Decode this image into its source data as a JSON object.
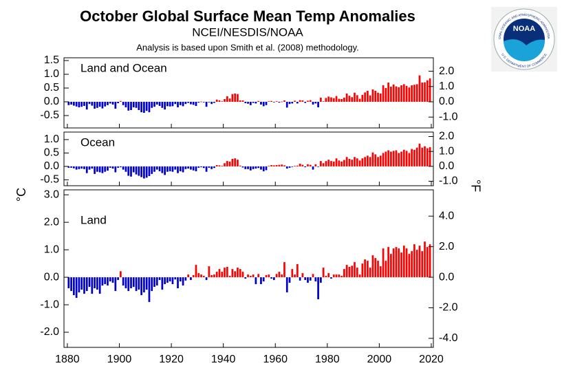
{
  "header": {
    "title": "October Global Surface Mean Temp Anomalies",
    "subtitle": "NCEI/NESDIS/NOAA",
    "note": "Analysis is based upon Smith et al. (2008) methodology."
  },
  "y_axis_label": "°C",
  "y2_axis_label": "°F",
  "logo": {
    "text": "NOAA",
    "ring_top": "NATIONAL OCEANIC AND ATMOSPHERIC ADMINISTRATION",
    "ring_bottom": "U.S. DEPARTMENT OF COMMERCE"
  },
  "chart_data": [
    {
      "type": "bar",
      "label": "Land and Ocean",
      "positive_color": "#ff0000",
      "negative_color": "#0000cc",
      "xlim": [
        1878.7,
        2020.8
      ],
      "x": [
        1880,
        1881,
        1882,
        1883,
        1884,
        1885,
        1886,
        1887,
        1888,
        1889,
        1890,
        1891,
        1892,
        1893,
        1894,
        1895,
        1896,
        1897,
        1898,
        1899,
        1900,
        1901,
        1902,
        1903,
        1904,
        1905,
        1906,
        1907,
        1908,
        1909,
        1910,
        1911,
        1912,
        1913,
        1914,
        1915,
        1916,
        1917,
        1918,
        1919,
        1920,
        1921,
        1922,
        1923,
        1924,
        1925,
        1926,
        1927,
        1928,
        1929,
        1930,
        1931,
        1932,
        1933,
        1934,
        1935,
        1936,
        1937,
        1938,
        1939,
        1940,
        1941,
        1942,
        1943,
        1944,
        1945,
        1946,
        1947,
        1948,
        1949,
        1950,
        1951,
        1952,
        1953,
        1954,
        1955,
        1956,
        1957,
        1958,
        1959,
        1960,
        1961,
        1962,
        1963,
        1964,
        1965,
        1966,
        1967,
        1968,
        1969,
        1970,
        1971,
        1972,
        1973,
        1974,
        1975,
        1976,
        1977,
        1978,
        1979,
        1980,
        1981,
        1982,
        1983,
        1984,
        1985,
        1986,
        1987,
        1988,
        1989,
        1990,
        1991,
        1992,
        1993,
        1994,
        1995,
        1996,
        1997,
        1998,
        1999,
        2000,
        2001,
        2002,
        2003,
        2004,
        2005,
        2006,
        2007,
        2008,
        2009,
        2010,
        2011,
        2012,
        2013,
        2014,
        2015,
        2016,
        2017,
        2018,
        2019
      ],
      "values": [
        -0.12,
        -0.1,
        -0.14,
        -0.17,
        -0.2,
        -0.18,
        -0.15,
        -0.28,
        -0.08,
        -0.14,
        -0.25,
        -0.22,
        -0.18,
        -0.24,
        -0.17,
        -0.12,
        -0.06,
        -0.1,
        -0.25,
        -0.05,
        0.03,
        -0.12,
        -0.2,
        -0.32,
        -0.3,
        -0.2,
        -0.22,
        -0.3,
        -0.38,
        -0.4,
        -0.33,
        -0.38,
        -0.22,
        -0.18,
        -0.1,
        -0.15,
        -0.22,
        -0.28,
        -0.16,
        -0.17,
        -0.16,
        -0.08,
        -0.2,
        -0.12,
        -0.16,
        -0.08,
        -0.04,
        -0.09,
        -0.11,
        -0.15,
        -0.03,
        0.01,
        -0.02,
        -0.18,
        -0.02,
        -0.08,
        -0.04,
        0.08,
        0.05,
        0.02,
        0.1,
        0.2,
        0.12,
        0.28,
        0.3,
        0.28,
        0.05,
        0.05,
        -0.05,
        -0.07,
        -0.12,
        -0.04,
        -0.06,
        0.03,
        -0.1,
        -0.16,
        -0.12,
        0.02,
        0.03,
        -0.02,
        0.02,
        -0.03,
        0.01,
        0.05,
        -0.21,
        -0.08,
        -0.06,
        0.04,
        -0.06,
        0.06,
        0.05,
        -0.04,
        0.04,
        0.06,
        -0.1,
        -0.06,
        -0.2,
        0.15,
        0.02,
        0.14,
        0.19,
        0.16,
        0.13,
        0.21,
        0.11,
        0.1,
        0.15,
        0.3,
        0.22,
        0.17,
        0.33,
        0.24,
        0.11,
        0.25,
        0.34,
        0.4,
        0.23,
        0.45,
        0.4,
        0.33,
        0.3,
        0.6,
        0.5,
        0.7,
        0.55,
        0.63,
        0.56,
        0.53,
        0.6,
        0.64,
        0.58,
        0.52,
        0.6,
        0.62,
        0.64,
        0.96,
        0.7,
        0.71,
        0.78,
        0.85
      ],
      "ylim": [
        -0.95,
        1.6
      ],
      "yticks": [
        {
          "value": -0.5,
          "label": "-0.5"
        },
        {
          "value": 0,
          "label": "0.0"
        },
        0.5,
        {
          "value": 1,
          "label": "1.0"
        },
        1.5
      ],
      "y2lim": [
        -1.71,
        2.88
      ],
      "y2ticks": [
        {
          "value": -1,
          "label": "-1.0"
        },
        {
          "value": 0,
          "label": "0.0"
        },
        {
          "value": 1,
          "label": "1.0"
        },
        {
          "value": 2,
          "label": "2.0"
        }
      ]
    },
    {
      "type": "bar",
      "label": "Ocean",
      "positive_color": "#ff0000",
      "negative_color": "#0000cc",
      "xlim": [
        1878.7,
        2020.8
      ],
      "x": [
        1880,
        1881,
        1882,
        1883,
        1884,
        1885,
        1886,
        1887,
        1888,
        1889,
        1890,
        1891,
        1892,
        1893,
        1894,
        1895,
        1896,
        1897,
        1898,
        1899,
        1900,
        1901,
        1902,
        1903,
        1904,
        1905,
        1906,
        1907,
        1908,
        1909,
        1910,
        1911,
        1912,
        1913,
        1914,
        1915,
        1916,
        1917,
        1918,
        1919,
        1920,
        1921,
        1922,
        1923,
        1924,
        1925,
        1926,
        1927,
        1928,
        1929,
        1930,
        1931,
        1932,
        1933,
        1934,
        1935,
        1936,
        1937,
        1938,
        1939,
        1940,
        1941,
        1942,
        1943,
        1944,
        1945,
        1946,
        1947,
        1948,
        1949,
        1950,
        1951,
        1952,
        1953,
        1954,
        1955,
        1956,
        1957,
        1958,
        1959,
        1960,
        1961,
        1962,
        1963,
        1964,
        1965,
        1966,
        1967,
        1968,
        1969,
        1970,
        1971,
        1972,
        1973,
        1974,
        1975,
        1976,
        1977,
        1978,
        1979,
        1980,
        1981,
        1982,
        1983,
        1984,
        1985,
        1986,
        1987,
        1988,
        1989,
        1990,
        1991,
        1992,
        1993,
        1994,
        1995,
        1996,
        1997,
        1998,
        1999,
        2000,
        2001,
        2002,
        2003,
        2004,
        2005,
        2006,
        2007,
        2008,
        2009,
        2010,
        2011,
        2012,
        2013,
        2014,
        2015,
        2016,
        2017,
        2018,
        2019
      ],
      "values": [
        -0.05,
        -0.05,
        -0.07,
        -0.12,
        -0.1,
        -0.08,
        -0.1,
        -0.25,
        -0.12,
        -0.08,
        -0.28,
        -0.2,
        -0.22,
        -0.25,
        -0.2,
        -0.16,
        -0.05,
        -0.08,
        -0.22,
        -0.05,
        -0.03,
        -0.12,
        -0.2,
        -0.35,
        -0.38,
        -0.22,
        -0.3,
        -0.35,
        -0.4,
        -0.45,
        -0.42,
        -0.36,
        -0.28,
        -0.2,
        -0.12,
        -0.18,
        -0.25,
        -0.32,
        -0.2,
        -0.18,
        -0.2,
        -0.12,
        -0.25,
        -0.18,
        -0.22,
        -0.1,
        -0.08,
        -0.12,
        -0.15,
        -0.18,
        -0.05,
        -0.03,
        -0.06,
        -0.2,
        -0.05,
        -0.1,
        -0.06,
        0.05,
        0.04,
        0.02,
        0.12,
        0.2,
        0.18,
        0.28,
        0.3,
        0.25,
        0.03,
        -0.04,
        -0.1,
        -0.1,
        -0.15,
        -0.1,
        -0.08,
        -0.06,
        -0.12,
        -0.18,
        -0.14,
        0.02,
        0.05,
        0.04,
        0.05,
        0.06,
        0.07,
        0.04,
        -0.08,
        -0.05,
        -0.02,
        0.02,
        0.03,
        0.1,
        0.06,
        -0.03,
        0.08,
        0.06,
        -0.12,
        0.08,
        -0.02,
        0.2,
        0.12,
        0.2,
        0.25,
        0.2,
        0.18,
        0.3,
        0.22,
        0.18,
        0.24,
        0.35,
        0.28,
        0.25,
        0.35,
        0.3,
        0.22,
        0.3,
        0.35,
        0.4,
        0.35,
        0.52,
        0.45,
        0.35,
        0.4,
        0.5,
        0.55,
        0.6,
        0.55,
        0.58,
        0.6,
        0.5,
        0.55,
        0.62,
        0.58,
        0.5,
        0.65,
        0.62,
        0.7,
        0.85,
        0.7,
        0.75,
        0.68,
        0.72
      ],
      "ylim": [
        -0.72,
        1.28
      ],
      "yticks": [
        {
          "value": -0.5,
          "label": "-0.5"
        },
        {
          "value": 0,
          "label": "0.0"
        },
        0.5,
        {
          "value": 1,
          "label": "1.0"
        }
      ],
      "y2lim": [
        -1.3,
        2.3
      ],
      "y2ticks": [
        {
          "value": -1,
          "label": "-1.0"
        },
        {
          "value": 0,
          "label": "0.0"
        },
        {
          "value": 1,
          "label": "1.0"
        },
        {
          "value": 2,
          "label": "2.0"
        }
      ]
    },
    {
      "type": "bar",
      "label": "Land",
      "positive_color": "#ff0000",
      "negative_color": "#0000cc",
      "xlim": [
        1878.7,
        2020.8
      ],
      "xticks": [
        1880,
        1900,
        1920,
        1940,
        1960,
        1980,
        2000,
        2020
      ],
      "x": [
        1880,
        1881,
        1882,
        1883,
        1884,
        1885,
        1886,
        1887,
        1888,
        1889,
        1890,
        1891,
        1892,
        1893,
        1894,
        1895,
        1896,
        1897,
        1898,
        1899,
        1900,
        1901,
        1902,
        1903,
        1904,
        1905,
        1906,
        1907,
        1908,
        1909,
        1910,
        1911,
        1912,
        1913,
        1914,
        1915,
        1916,
        1917,
        1918,
        1919,
        1920,
        1921,
        1922,
        1923,
        1924,
        1925,
        1926,
        1927,
        1928,
        1929,
        1930,
        1931,
        1932,
        1933,
        1934,
        1935,
        1936,
        1937,
        1938,
        1939,
        1940,
        1941,
        1942,
        1943,
        1944,
        1945,
        1946,
        1947,
        1948,
        1949,
        1950,
        1951,
        1952,
        1953,
        1954,
        1955,
        1956,
        1957,
        1958,
        1959,
        1960,
        1961,
        1962,
        1963,
        1964,
        1965,
        1966,
        1967,
        1968,
        1969,
        1970,
        1971,
        1972,
        1973,
        1974,
        1975,
        1976,
        1977,
        1978,
        1979,
        1980,
        1981,
        1982,
        1983,
        1984,
        1985,
        1986,
        1987,
        1988,
        1989,
        1990,
        1991,
        1992,
        1993,
        1994,
        1995,
        1996,
        1997,
        1998,
        1999,
        2000,
        2001,
        2002,
        2003,
        2004,
        2005,
        2006,
        2007,
        2008,
        2009,
        2010,
        2011,
        2012,
        2013,
        2014,
        2015,
        2016,
        2017,
        2018,
        2019
      ],
      "values": [
        -0.4,
        -0.5,
        -0.65,
        -0.75,
        -0.55,
        -0.45,
        -0.6,
        -0.5,
        -0.35,
        -0.6,
        -0.4,
        -0.45,
        -0.6,
        -0.3,
        -0.25,
        -0.3,
        -0.15,
        -0.2,
        -0.5,
        -0.1,
        0.22,
        -0.3,
        -0.4,
        -0.5,
        -0.4,
        -0.35,
        -0.5,
        -0.45,
        -0.65,
        -0.55,
        -0.45,
        -0.9,
        -0.5,
        -0.35,
        -0.3,
        -0.1,
        -0.45,
        -0.25,
        -0.2,
        -0.15,
        -0.25,
        -0.08,
        -0.4,
        -0.15,
        -0.3,
        -0.12,
        0.1,
        -0.1,
        0.08,
        0.45,
        0.15,
        0.1,
        0.05,
        -0.1,
        0.4,
        0.08,
        0.1,
        0.2,
        0.3,
        0.2,
        0.35,
        0.38,
        0.05,
        0.3,
        0.22,
        0.35,
        0.3,
        0.2,
        -0.05,
        0.1,
        0.05,
        0.1,
        -0.25,
        0.12,
        -0.25,
        -0.15,
        0.08,
        0.1,
        -0.05,
        -0.1,
        0.12,
        0.2,
        0.1,
        0.55,
        -0.55,
        -0.2,
        0.3,
        0.1,
        0.48,
        -0.12,
        0.15,
        -0.1,
        -0.2,
        -0.12,
        0.12,
        -0.15,
        -0.8,
        -0.2,
        0.35,
        0.05,
        0.15,
        -0.05,
        0.1,
        0.1,
        0.1,
        0.05,
        0.3,
        0.45,
        0.38,
        0.42,
        0.55,
        0.35,
        0.1,
        0.5,
        0.65,
        0.6,
        0.35,
        0.8,
        0.7,
        0.6,
        0.4,
        1.05,
        0.6,
        1.1,
        0.85,
        1.05,
        1.1,
        1.05,
        0.9,
        1.15,
        1.05,
        0.85,
        0.95,
        1.2,
        1.0,
        1.15,
        0.95,
        1.3,
        1.1,
        1.2
      ],
      "ylim": [
        -2.55,
        3.18
      ],
      "yticks": [
        {
          "value": -2,
          "label": "-2.0"
        },
        {
          "value": -1,
          "label": "-1.0"
        },
        {
          "value": 0,
          "label": "0.0"
        },
        {
          "value": 1,
          "label": "1.0"
        },
        {
          "value": 2,
          "label": "2.0"
        },
        {
          "value": 3,
          "label": "3.0"
        }
      ],
      "y2lim": [
        -4.59,
        5.72
      ],
      "y2ticks": [
        {
          "value": -4,
          "label": "-4.0"
        },
        {
          "value": -2,
          "label": "-2.0"
        },
        {
          "value": 0,
          "label": "0.0"
        },
        {
          "value": 2,
          "label": "2.0"
        },
        {
          "value": 4,
          "label": "4.0"
        }
      ]
    }
  ]
}
